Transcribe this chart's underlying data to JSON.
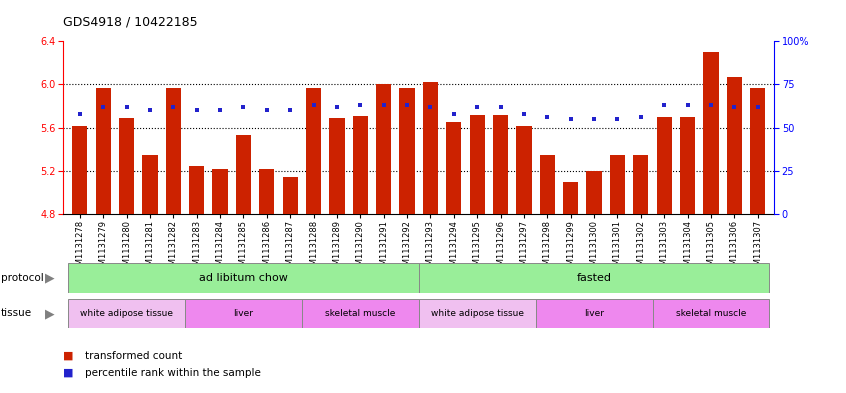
{
  "title": "GDS4918 / 10422185",
  "samples": [
    "GSM1131278",
    "GSM1131279",
    "GSM1131280",
    "GSM1131281",
    "GSM1131282",
    "GSM1131283",
    "GSM1131284",
    "GSM1131285",
    "GSM1131286",
    "GSM1131287",
    "GSM1131288",
    "GSM1131289",
    "GSM1131290",
    "GSM1131291",
    "GSM1131292",
    "GSM1131293",
    "GSM1131294",
    "GSM1131295",
    "GSM1131296",
    "GSM1131297",
    "GSM1131298",
    "GSM1131299",
    "GSM1131300",
    "GSM1131301",
    "GSM1131302",
    "GSM1131303",
    "GSM1131304",
    "GSM1131305",
    "GSM1131306",
    "GSM1131307"
  ],
  "bar_values": [
    5.62,
    5.97,
    5.69,
    5.35,
    5.97,
    5.25,
    5.22,
    5.53,
    5.22,
    5.14,
    5.97,
    5.69,
    5.71,
    6.0,
    5.97,
    6.02,
    5.65,
    5.72,
    5.72,
    5.62,
    5.35,
    5.1,
    5.2,
    5.35,
    5.35,
    5.7,
    5.7,
    6.3,
    6.07,
    5.97
  ],
  "percentile_values": [
    58,
    62,
    62,
    60,
    62,
    60,
    60,
    62,
    60,
    60,
    63,
    62,
    63,
    63,
    63,
    62,
    58,
    62,
    62,
    58,
    56,
    55,
    55,
    55,
    56,
    63,
    63,
    63,
    62,
    62
  ],
  "ylim_left": [
    4.8,
    6.4
  ],
  "ylim_right": [
    0,
    100
  ],
  "yticks_left": [
    4.8,
    5.2,
    5.6,
    6.0,
    6.4
  ],
  "yticks_right": [
    0,
    25,
    50,
    75,
    100
  ],
  "ytick_labels_right": [
    "0",
    "25",
    "50",
    "75",
    "100%"
  ],
  "bar_color": "#cc2200",
  "dot_color": "#2222cc",
  "protocol_labels": [
    "ad libitum chow",
    "fasted"
  ],
  "protocol_ranges": [
    [
      0,
      14
    ],
    [
      15,
      29
    ]
  ],
  "protocol_color": "#99ee99",
  "tissue_groups": [
    {
      "label": "white adipose tissue",
      "range": [
        0,
        4
      ],
      "color": "#f0c0f0"
    },
    {
      "label": "liver",
      "range": [
        5,
        9
      ],
      "color": "#ee88ee"
    },
    {
      "label": "skeletal muscle",
      "range": [
        10,
        14
      ],
      "color": "#ee88ee"
    },
    {
      "label": "white adipose tissue",
      "range": [
        15,
        19
      ],
      "color": "#f0c0f0"
    },
    {
      "label": "liver",
      "range": [
        20,
        24
      ],
      "color": "#ee88ee"
    },
    {
      "label": "skeletal muscle",
      "range": [
        25,
        29
      ],
      "color": "#ee88ee"
    }
  ],
  "legend_bar_label": "transformed count",
  "legend_dot_label": "percentile rank within the sample",
  "bar_color_legend": "#cc2200",
  "dot_color_legend": "#2222cc"
}
